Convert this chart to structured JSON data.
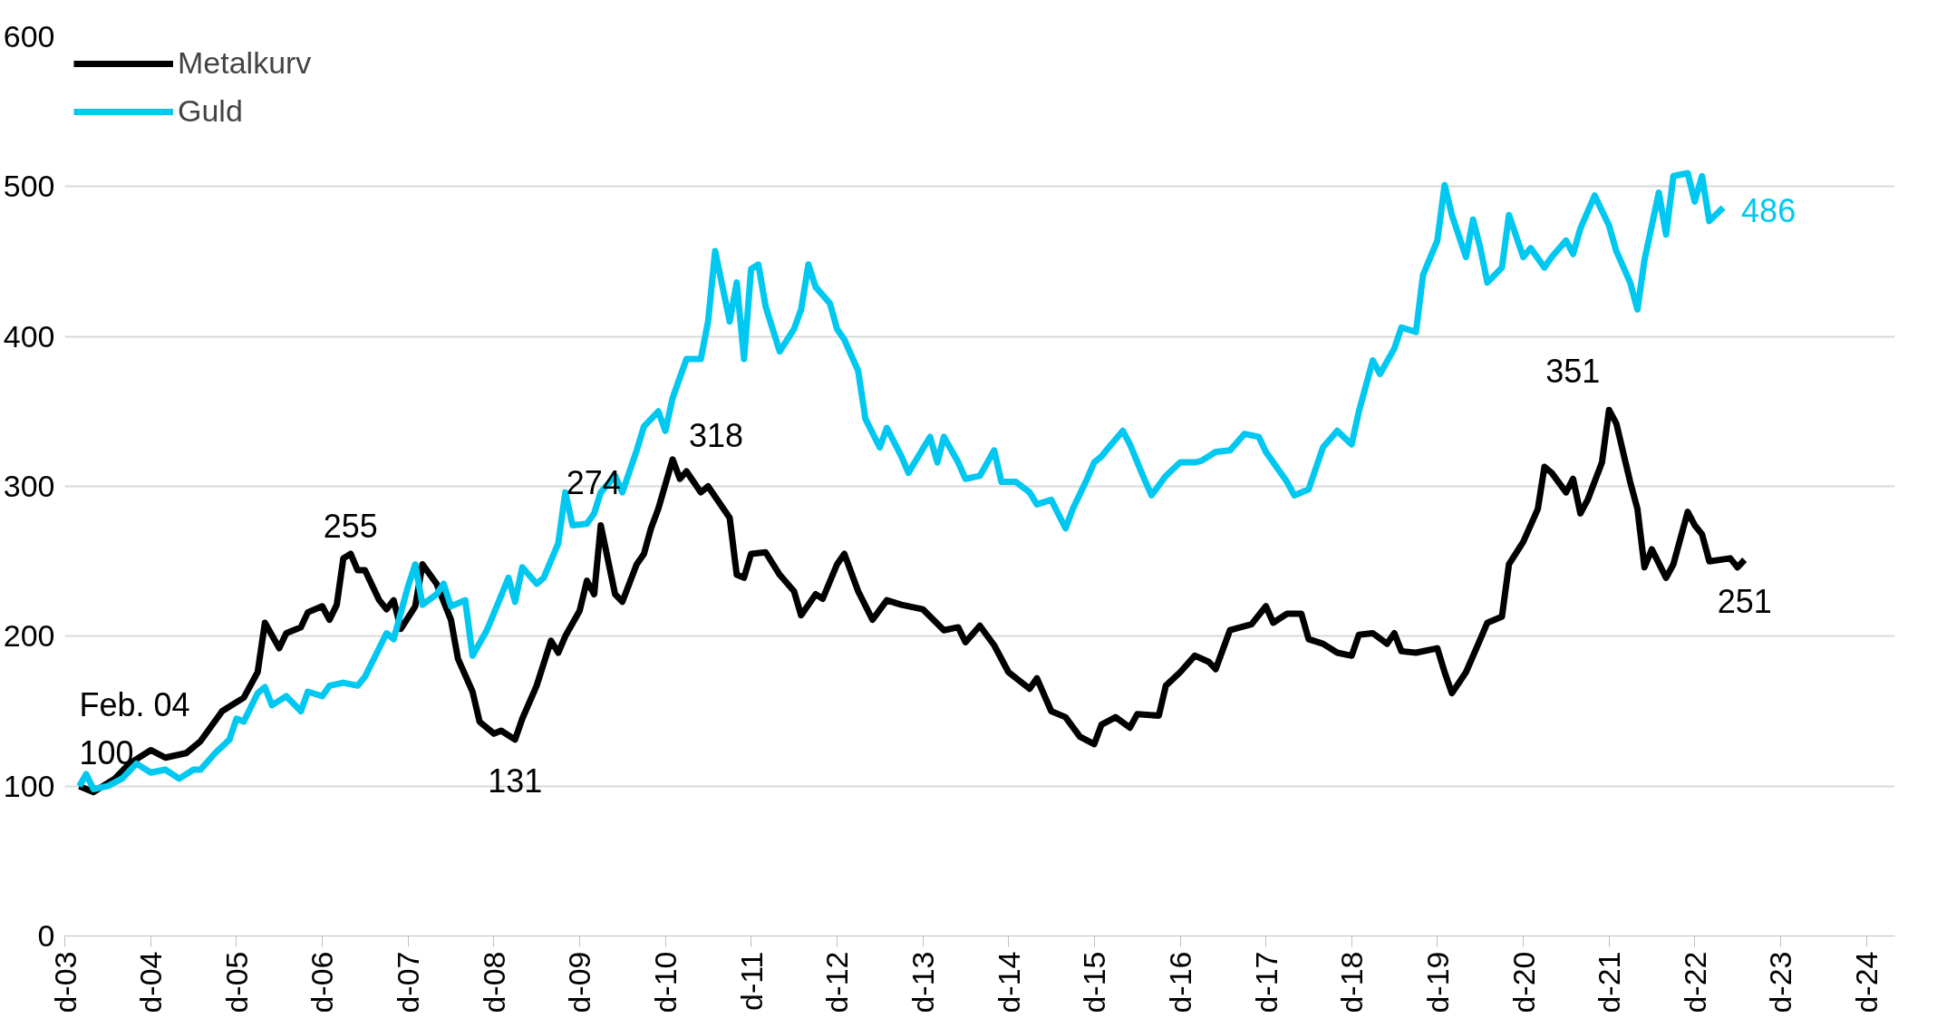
{
  "chart_data": {
    "type": "line",
    "grid": "y",
    "legend": "top left",
    "line_style": "solid",
    "marker": "none",
    "xlim": [
      "2003-12",
      "2025-04"
    ],
    "ylim": [
      0,
      600
    ],
    "yticks": [
      0,
      100,
      200,
      300,
      400,
      500,
      600
    ],
    "xticks": [
      {
        "value": "2003-12",
        "label": "d-03"
      },
      {
        "value": "2004-12",
        "label": "d-04"
      },
      {
        "value": "2005-12",
        "label": "d-05"
      },
      {
        "value": "2006-12",
        "label": "d-06"
      },
      {
        "value": "2007-12",
        "label": "d-07"
      },
      {
        "value": "2008-12",
        "label": "d-08"
      },
      {
        "value": "2009-12",
        "label": "d-09"
      },
      {
        "value": "2010-12",
        "label": "d-10"
      },
      {
        "value": "2011-12",
        "label": "d-11"
      },
      {
        "value": "2012-12",
        "label": "d-12"
      },
      {
        "value": "2013-12",
        "label": "d-13"
      },
      {
        "value": "2014-12",
        "label": "d-14"
      },
      {
        "value": "2015-12",
        "label": "d-15"
      },
      {
        "value": "2016-12",
        "label": "d-16"
      },
      {
        "value": "2017-12",
        "label": "d-17"
      },
      {
        "value": "2018-12",
        "label": "d-18"
      },
      {
        "value": "2019-12",
        "label": "d-19"
      },
      {
        "value": "2020-12",
        "label": "d-20"
      },
      {
        "value": "2021-12",
        "label": "d-21"
      },
      {
        "value": "2022-12",
        "label": "d-22"
      },
      {
        "value": "2023-12",
        "label": "d-23"
      },
      {
        "value": "2024-12",
        "label": "d-24"
      }
    ],
    "series": [
      {
        "name": "Metalkurv",
        "color": "#000000",
        "x": [
          "2004-02",
          "2004-04",
          "2004-07",
          "2004-09",
          "2004-12",
          "2005-02",
          "2005-05",
          "2005-07",
          "2005-10",
          "2006-01",
          "2006-03",
          "2006-04",
          "2006-06",
          "2006-07",
          "2006-09",
          "2006-10",
          "2006-12",
          "2007-01",
          "2007-02",
          "2007-03",
          "2007-04",
          "2007-05",
          "2007-06",
          "2007-08",
          "2007-09",
          "2007-10",
          "2007-11",
          "2008-01",
          "2008-02",
          "2008-04",
          "2008-06",
          "2008-07",
          "2008-09",
          "2008-10",
          "2008-12",
          "2009-01",
          "2009-03",
          "2009-04",
          "2009-06",
          "2009-08",
          "2009-09",
          "2009-10",
          "2009-12",
          "2010-01",
          "2010-02",
          "2010-03",
          "2010-05",
          "2010-06",
          "2010-08",
          "2010-09",
          "2010-10",
          "2010-11",
          "2011-01",
          "2011-02",
          "2011-03",
          "2011-05",
          "2011-06",
          "2011-09",
          "2011-10",
          "2011-11",
          "2011-12",
          "2012-02",
          "2012-04",
          "2012-06",
          "2012-07",
          "2012-09",
          "2012-10",
          "2012-12",
          "2013-01",
          "2013-03",
          "2013-05",
          "2013-07",
          "2013-09",
          "2013-12",
          "2014-03",
          "2014-05",
          "2014-06",
          "2014-08",
          "2014-10",
          "2014-12",
          "2015-03",
          "2015-04",
          "2015-06",
          "2015-08",
          "2015-10",
          "2015-12",
          "2016-01",
          "2016-03",
          "2016-05",
          "2016-06",
          "2016-09",
          "2016-10",
          "2016-12",
          "2017-02",
          "2017-04",
          "2017-05",
          "2017-07",
          "2017-10",
          "2017-12",
          "2018-01",
          "2018-03",
          "2018-05",
          "2018-06",
          "2018-08",
          "2018-10",
          "2018-12",
          "2019-01",
          "2019-03",
          "2019-05",
          "2019-06",
          "2019-07",
          "2019-09",
          "2019-12",
          "2020-01",
          "2020-02",
          "2020-04",
          "2020-06",
          "2020-07",
          "2020-09",
          "2020-10",
          "2020-12",
          "2021-02",
          "2021-03",
          "2021-04",
          "2021-06",
          "2021-07",
          "2021-08",
          "2021-09",
          "2021-11",
          "2021-12",
          "2022-01",
          "2022-03",
          "2022-04",
          "2022-05",
          "2022-06",
          "2022-08",
          "2022-09",
          "2022-11",
          "2022-12",
          "2023-01",
          "2023-02",
          "2023-05",
          "2023-06",
          "2023-07"
        ],
        "values": [
          100,
          96,
          105,
          115,
          124,
          119,
          122,
          130,
          150,
          159,
          176,
          209,
          192,
          202,
          206,
          216,
          220,
          211,
          221,
          252,
          255,
          244,
          244,
          224,
          218,
          224,
          205,
          220,
          248,
          235,
          211,
          185,
          163,
          143,
          135,
          137,
          131,
          145,
          167,
          197,
          189,
          200,
          217,
          237,
          228,
          274,
          228,
          223,
          248,
          255,
          272,
          285,
          318,
          305,
          310,
          296,
          300,
          279,
          241,
          239,
          255,
          256,
          241,
          230,
          214,
          228,
          225,
          248,
          255,
          230,
          211,
          224,
          221,
          218,
          204,
          206,
          196,
          207,
          194,
          176,
          165,
          172,
          150,
          146,
          133,
          128,
          141,
          146,
          139,
          148,
          147,
          167,
          176,
          187,
          183,
          178,
          204,
          208,
          220,
          209,
          215,
          215,
          198,
          195,
          189,
          187,
          201,
          202,
          195,
          202,
          190,
          189,
          192,
          176,
          162,
          176,
          198,
          209,
          213,
          248,
          263,
          285,
          313,
          309,
          296,
          305,
          282,
          291,
          316,
          351,
          342,
          303,
          285,
          246,
          258,
          239,
          248,
          283,
          274,
          268,
          250,
          252,
          246,
          251
        ],
        "value_labels": [
          "Feb. 04\n100",
          null,
          null,
          null,
          null,
          null,
          null,
          null,
          null,
          null,
          null,
          null,
          null,
          null,
          null,
          null,
          null,
          null,
          null,
          null,
          "255",
          null,
          null,
          null,
          null,
          null,
          null,
          null,
          null,
          null,
          null,
          null,
          null,
          null,
          null,
          null,
          "131",
          null,
          null,
          null,
          null,
          null,
          null,
          null,
          null,
          "274",
          null,
          null,
          null,
          null,
          null,
          null,
          "318",
          null,
          null,
          null,
          null,
          null,
          null,
          null,
          null,
          null,
          null,
          null,
          null,
          null,
          null,
          null,
          null,
          null,
          null,
          null,
          null,
          null,
          null,
          null,
          null,
          null,
          null,
          null,
          null,
          null,
          null,
          null,
          null,
          null,
          null,
          null,
          null,
          null,
          null,
          null,
          null,
          null,
          null,
          null,
          null,
          null,
          null,
          null,
          null,
          null,
          null,
          null,
          null,
          null,
          null,
          null,
          null,
          null,
          null,
          null,
          null,
          null,
          null,
          null,
          null,
          null,
          null,
          null,
          null,
          null,
          null,
          null,
          null,
          null,
          null,
          null,
          null,
          "351",
          null,
          null,
          null,
          null,
          null,
          null,
          null,
          null,
          null,
          null,
          null,
          null,
          null,
          "251"
        ]
      },
      {
        "name": "Guld",
        "color": "#00c8f0",
        "x": [
          "2004-02",
          "2004-03",
          "2004-04",
          "2004-06",
          "2004-08",
          "2004-10",
          "2004-12",
          "2005-02",
          "2005-04",
          "2005-06",
          "2005-07",
          "2005-09",
          "2005-11",
          "2005-12",
          "2006-01",
          "2006-03",
          "2006-04",
          "2006-05",
          "2006-07",
          "2006-09",
          "2006-10",
          "2006-12",
          "2007-01",
          "2007-03",
          "2007-05",
          "2007-06",
          "2007-09",
          "2007-10",
          "2007-12",
          "2008-01",
          "2008-02",
          "2008-04",
          "2008-05",
          "2008-06",
          "2008-08",
          "2008-09",
          "2008-11",
          "2009-01",
          "2009-02",
          "2009-03",
          "2009-04",
          "2009-06",
          "2009-07",
          "2009-09",
          "2009-10",
          "2009-11",
          "2010-01",
          "2010-02",
          "2010-03",
          "2010-05",
          "2010-06",
          "2010-08",
          "2010-09",
          "2010-11",
          "2010-12",
          "2011-01",
          "2011-03",
          "2011-05",
          "2011-06",
          "2011-07",
          "2011-09",
          "2011-10",
          "2011-11",
          "2011-12",
          "2012-01",
          "2012-02",
          "2012-04",
          "2012-06",
          "2012-07",
          "2012-08",
          "2012-09",
          "2012-11",
          "2012-12",
          "2013-01",
          "2013-03",
          "2013-04",
          "2013-06",
          "2013-07",
          "2013-09",
          "2013-10",
          "2014-01",
          "2014-02",
          "2014-03",
          "2014-05",
          "2014-06",
          "2014-08",
          "2014-10",
          "2014-11",
          "2015-01",
          "2015-03",
          "2015-04",
          "2015-06",
          "2015-08",
          "2015-09",
          "2015-11",
          "2015-12",
          "2016-01",
          "2016-02",
          "2016-04",
          "2016-05",
          "2016-07",
          "2016-08",
          "2016-10",
          "2016-12",
          "2017-02",
          "2017-03",
          "2017-05",
          "2017-07",
          "2017-09",
          "2017-11",
          "2017-12",
          "2018-03",
          "2018-04",
          "2018-06",
          "2018-08",
          "2018-10",
          "2018-12",
          "2019-01",
          "2019-03",
          "2019-04",
          "2019-06",
          "2019-07",
          "2019-09",
          "2019-10",
          "2019-12",
          "2020-01",
          "2020-02",
          "2020-04",
          "2020-05",
          "2020-06",
          "2020-07",
          "2020-09",
          "2020-10",
          "2020-12",
          "2021-01",
          "2021-03",
          "2021-04",
          "2021-06",
          "2021-07",
          "2021-08",
          "2021-10",
          "2021-12",
          "2022-01",
          "2022-03",
          "2022-04",
          "2022-05",
          "2022-07",
          "2022-08",
          "2022-09",
          "2022-11",
          "2022-12",
          "2023-01",
          "2023-02",
          "2023-04"
        ],
        "values": [
          100,
          108,
          98,
          100,
          105,
          115,
          109,
          111,
          105,
          111,
          111,
          122,
          131,
          145,
          143,
          162,
          166,
          154,
          160,
          150,
          163,
          160,
          167,
          169,
          167,
          173,
          202,
          198,
          233,
          248,
          221,
          228,
          235,
          220,
          224,
          187,
          204,
          227,
          239,
          223,
          246,
          235,
          239,
          262,
          296,
          274,
          275,
          282,
          296,
          307,
          296,
          324,
          340,
          350,
          337,
          359,
          385,
          385,
          410,
          457,
          410,
          436,
          385,
          445,
          448,
          420,
          390,
          405,
          418,
          448,
          433,
          422,
          405,
          398,
          377,
          345,
          326,
          339,
          320,
          309,
          333,
          316,
          333,
          316,
          305,
          307,
          324,
          303,
          303,
          296,
          288,
          291,
          272,
          285,
          305,
          316,
          320,
          326,
          337,
          328,
          305,
          294,
          307,
          316,
          316,
          317,
          323,
          324,
          335,
          333,
          323,
          303,
          294,
          298,
          326,
          337,
          328,
          350,
          384,
          375,
          392,
          406,
          403,
          441,
          464,
          501,
          481,
          453,
          478,
          459,
          436,
          446,
          481,
          453,
          459,
          446,
          453,
          464,
          455,
          472,
          494,
          474,
          457,
          436,
          418,
          451,
          496,
          468,
          507,
          509,
          490,
          507,
          477,
          486
        ],
        "value_labels": [
          null,
          null,
          null,
          null,
          null,
          null,
          null,
          null,
          null,
          null,
          null,
          null,
          null,
          null,
          null,
          null,
          null,
          null,
          null,
          null,
          null,
          null,
          null,
          null,
          null,
          null,
          null,
          null,
          null,
          null,
          null,
          null,
          null,
          null,
          null,
          null,
          null,
          null,
          null,
          null,
          null,
          null,
          null,
          null,
          null,
          null,
          null,
          null,
          null,
          null,
          null,
          null,
          null,
          null,
          null,
          null,
          null,
          null,
          null,
          null,
          null,
          null,
          null,
          null,
          null,
          null,
          null,
          null,
          null,
          null,
          null,
          null,
          null,
          null,
          null,
          null,
          null,
          null,
          null,
          null,
          null,
          null,
          null,
          null,
          null,
          null,
          null,
          null,
          null,
          null,
          null,
          null,
          null,
          null,
          null,
          null,
          null,
          null,
          null,
          null,
          null,
          null,
          null,
          null,
          null,
          null,
          null,
          null,
          null,
          null,
          null,
          null,
          null,
          null,
          null,
          null,
          null,
          null,
          null,
          null,
          null,
          null,
          null,
          null,
          null,
          null,
          null,
          null,
          null,
          null,
          null,
          null,
          null,
          null,
          null,
          null,
          null,
          null,
          null,
          null,
          null,
          null,
          null,
          null,
          null,
          null,
          null,
          null,
          null,
          null,
          null,
          null,
          null,
          "486"
        ]
      }
    ]
  }
}
